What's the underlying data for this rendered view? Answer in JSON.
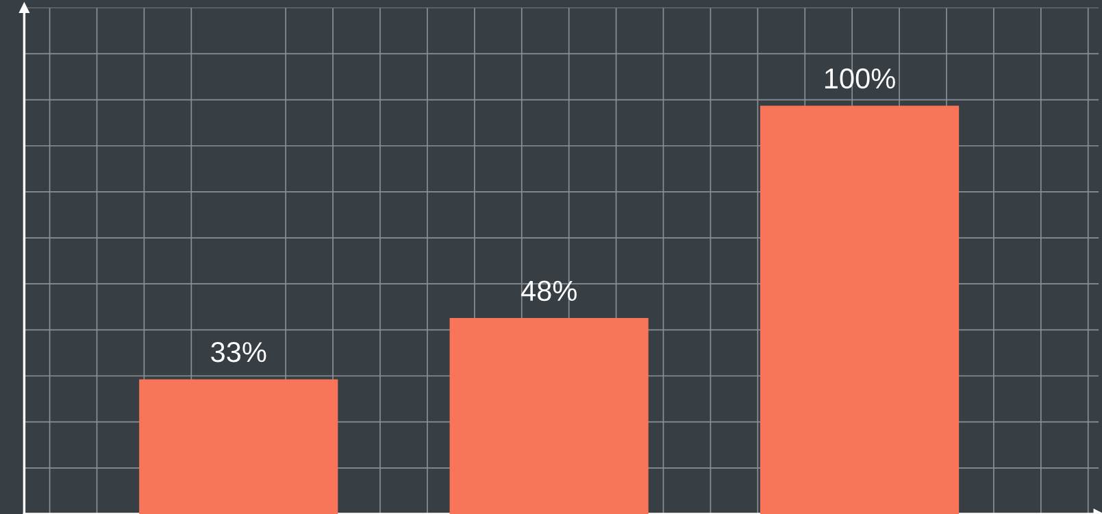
{
  "chart_data": {
    "type": "bar",
    "categories": [
      null,
      null,
      null
    ],
    "values": [
      33,
      48,
      100
    ],
    "color": "#f87559",
    "data_labels": true,
    "value_labels": [
      "33%",
      "48%",
      "100%"
    ],
    "grid": true
  }
}
